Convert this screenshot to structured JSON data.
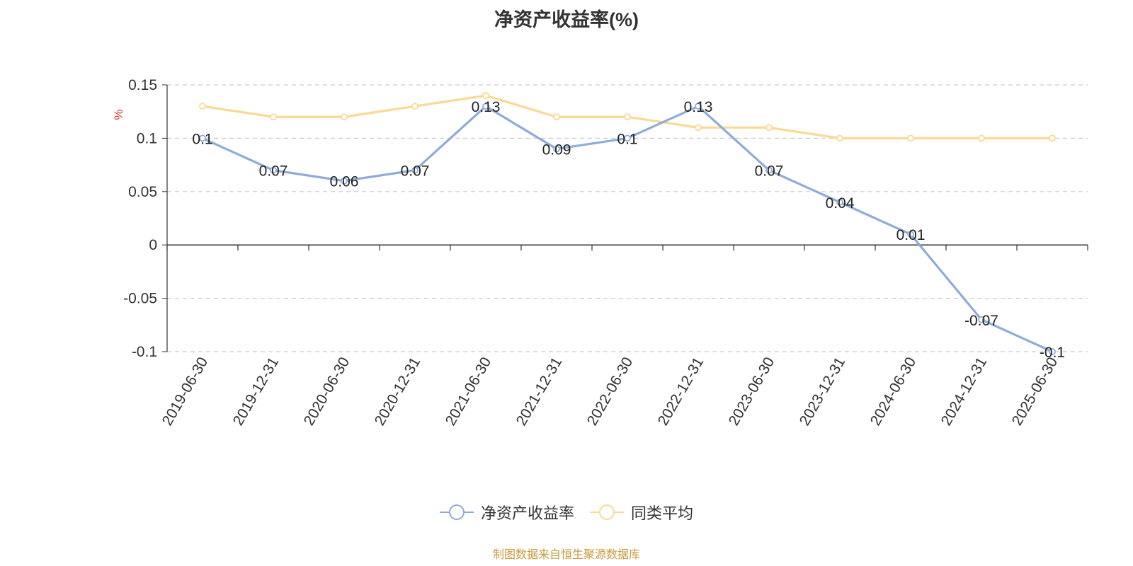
{
  "chart_data": {
    "type": "line",
    "title": "净资产收益率(%)",
    "ylabel": "%",
    "ylim": [
      -0.1,
      0.15
    ],
    "yticks": [
      0.15,
      0.1,
      0.05,
      0,
      -0.05,
      -0.1
    ],
    "grid": true,
    "legend_position": "bottom",
    "categories": [
      "2019-06-30",
      "2019-12-31",
      "2020-06-30",
      "2020-12-31",
      "2021-06-30",
      "2021-12-31",
      "2022-06-30",
      "2022-12-31",
      "2023-06-30",
      "2023-12-31",
      "2024-06-30",
      "2024-12-31",
      "2025-06-30"
    ],
    "series": [
      {
        "name": "净资产收益率",
        "color": "#8eacd8",
        "show_labels": true,
        "values": [
          0.1,
          0.07,
          0.06,
          0.07,
          0.13,
          0.09,
          0.1,
          0.13,
          0.07,
          0.04,
          0.01,
          -0.07,
          -0.1
        ]
      },
      {
        "name": "同类平均",
        "color": "#fbd993",
        "show_labels": false,
        "values": [
          0.13,
          0.12,
          0.12,
          0.13,
          0.14,
          0.12,
          0.12,
          0.11,
          0.11,
          0.1,
          0.1,
          0.1,
          0.1
        ]
      }
    ]
  },
  "source": "制图数据来自恒生聚源数据库"
}
